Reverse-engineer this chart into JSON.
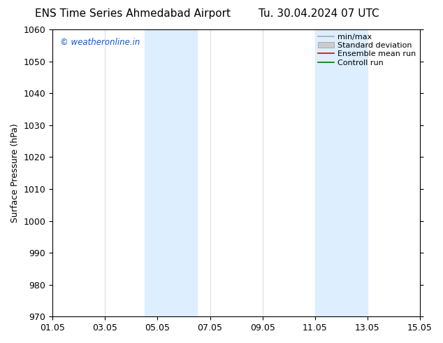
{
  "title_left": "ENS Time Series Ahmedabad Airport",
  "title_right": "Tu. 30.04.2024 07 UTC",
  "ylabel": "Surface Pressure (hPa)",
  "ylim": [
    970,
    1060
  ],
  "yticks": [
    970,
    980,
    990,
    1000,
    1010,
    1020,
    1030,
    1040,
    1050,
    1060
  ],
  "xlim": [
    0,
    14
  ],
  "xtick_labels": [
    "01.05",
    "03.05",
    "05.05",
    "07.05",
    "09.05",
    "11.05",
    "13.05",
    "15.05"
  ],
  "xtick_positions": [
    0,
    2,
    4,
    6,
    8,
    10,
    12,
    14
  ],
  "shaded_bands": [
    {
      "x_start": 3.5,
      "x_end": 5.5,
      "color": "#ddeeff"
    },
    {
      "x_start": 10.0,
      "x_end": 12.0,
      "color": "#ddeeff"
    }
  ],
  "watermark_text": "© weatheronline.in",
  "watermark_color": "#1155cc",
  "background_color": "#ffffff",
  "legend_entries": [
    {
      "label": "min/max",
      "color": "#aaaaaa",
      "style": "line"
    },
    {
      "label": "Standard deviation",
      "color": "#cccccc",
      "style": "box"
    },
    {
      "label": "Ensemble mean run",
      "color": "#dd0000",
      "style": "line"
    },
    {
      "label": "Controll run",
      "color": "#007700",
      "style": "line"
    }
  ],
  "title_fontsize": 11,
  "axis_label_fontsize": 9,
  "tick_fontsize": 9,
  "legend_fontsize": 8
}
